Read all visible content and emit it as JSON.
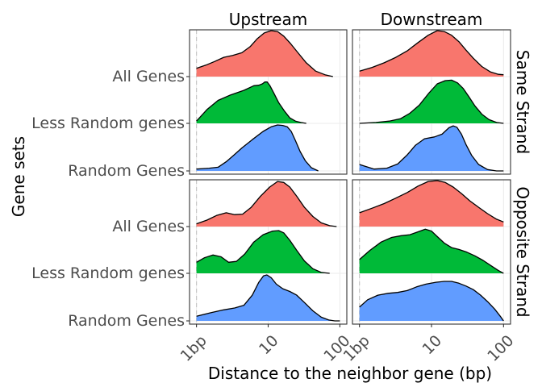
{
  "chart_data": {
    "type": "ridgeline",
    "xlabel": "Distance to the neighbor gene (bp)",
    "ylabel": "Gene sets",
    "x_scale": "log10",
    "x_ticks": [
      {
        "value": 1,
        "label": "1bp"
      },
      {
        "value": 10,
        "label": "10"
      },
      {
        "value": 100,
        "label": "100"
      }
    ],
    "x_range": [
      0.8,
      125
    ],
    "reference_line_x": 1,
    "grid": "major gridlines only",
    "legend": "none",
    "column_facets": [
      "Upstream",
      "Downstream"
    ],
    "row_facets": [
      "Same Strand",
      "Opposite Strand"
    ],
    "categories": [
      "All Genes",
      "Less Random genes",
      "Random Genes"
    ],
    "colors": {
      "All Genes": "#F8766D",
      "Less Random genes": "#00BA38",
      "Random Genes": "#619CFF"
    },
    "panels": [
      {
        "row": "Same Strand",
        "col": "Upstream",
        "series": [
          {
            "name": "All Genes",
            "x": [
              1.0,
              1.35,
              1.8,
              2.4,
              3.2,
              4.3,
              5.6,
              7.0,
              8.8,
              11.0,
              13.5,
              16.5,
              20.5,
              26.0,
              34.0,
              46.0,
              62.0,
              80.0
            ],
            "y": [
              0.18,
              0.25,
              0.33,
              0.42,
              0.46,
              0.52,
              0.65,
              0.82,
              0.95,
              1.0,
              0.98,
              0.88,
              0.72,
              0.52,
              0.3,
              0.12,
              0.04,
              0.0
            ]
          },
          {
            "name": "Less Random genes",
            "x": [
              1.0,
              1.4,
              2.0,
              3.0,
              4.6,
              6.3,
              7.4,
              8.3,
              9.0,
              9.7,
              10.6,
              12.0,
              14.0,
              17.0,
              20.0,
              24.0,
              28.5,
              34.0
            ],
            "y": [
              0.05,
              0.3,
              0.5,
              0.62,
              0.72,
              0.82,
              0.83,
              0.86,
              0.9,
              0.9,
              0.82,
              0.66,
              0.45,
              0.26,
              0.12,
              0.05,
              0.02,
              0.0
            ]
          },
          {
            "name": "Random Genes",
            "x": [
              1.0,
              1.5,
              2.0,
              2.6,
              3.3,
              4.3,
              6.0,
              8.5,
              11.0,
              13.5,
              16.0,
              18.5,
              21.0,
              24.0,
              28.0,
              33.0,
              40.0,
              50.0
            ],
            "y": [
              0.04,
              0.06,
              0.08,
              0.2,
              0.34,
              0.5,
              0.68,
              0.86,
              0.96,
              1.0,
              0.99,
              0.96,
              0.86,
              0.66,
              0.42,
              0.22,
              0.07,
              0.0
            ]
          }
        ]
      },
      {
        "row": "Same Strand",
        "col": "Downstream",
        "series": [
          {
            "name": "All Genes",
            "x": [
              1.0,
              1.5,
              2.2,
              3.2,
              4.6,
              6.5,
              9.0,
              12.0,
              15.0,
              19.0,
              24.0,
              30.0,
              38.0,
              50.0,
              66.0,
              85.0,
              100.0
            ],
            "y": [
              0.12,
              0.2,
              0.3,
              0.42,
              0.56,
              0.74,
              0.9,
              1.0,
              0.98,
              0.9,
              0.76,
              0.58,
              0.4,
              0.22,
              0.1,
              0.05,
              0.04
            ]
          },
          {
            "name": "Less Random genes",
            "x": [
              1.0,
              1.7,
              2.6,
              3.7,
              5.0,
              6.8,
              9.2,
              12.0,
              15.5,
              19.0,
              23.0,
              27.5,
              33.0,
              40.0,
              50.0,
              63.0,
              80.0,
              100.0
            ],
            "y": [
              0.0,
              0.02,
              0.05,
              0.1,
              0.22,
              0.4,
              0.66,
              0.86,
              0.93,
              0.94,
              0.88,
              0.76,
              0.58,
              0.38,
              0.2,
              0.08,
              0.02,
              0.0
            ]
          },
          {
            "name": "Random Genes",
            "x": [
              1.0,
              1.2,
              1.6,
              2.4,
              3.4,
              4.6,
              6.0,
              8.0,
              11.0,
              14.0,
              17.5,
              20.0,
              22.5,
              26.0,
              30.0,
              36.0,
              45.0,
              60.0,
              80.0,
              100.0
            ],
            "y": [
              0.14,
              0.1,
              0.04,
              0.06,
              0.15,
              0.35,
              0.56,
              0.7,
              0.74,
              0.8,
              0.94,
              0.98,
              0.95,
              0.8,
              0.58,
              0.34,
              0.14,
              0.03,
              0.0,
              0.0
            ]
          }
        ]
      },
      {
        "row": "Opposite Strand",
        "col": "Upstream",
        "series": [
          {
            "name": "All Genes",
            "x": [
              1.0,
              1.4,
              1.9,
              2.6,
              3.4,
              4.4,
              5.8,
              7.8,
              10.5,
              13.5,
              16.5,
              20.0,
              25.0,
              32.0,
              42.0,
              55.0,
              72.0,
              90.0
            ],
            "y": [
              0.06,
              0.14,
              0.24,
              0.3,
              0.26,
              0.27,
              0.42,
              0.66,
              0.86,
              0.98,
              0.96,
              0.86,
              0.66,
              0.42,
              0.22,
              0.08,
              0.02,
              0.0
            ]
          },
          {
            "name": "Less Random genes",
            "x": [
              1.0,
              1.3,
              1.7,
              2.2,
              2.8,
              3.6,
              4.7,
              6.3,
              8.5,
              11.5,
              14.0,
              16.5,
              20.0,
              25.0,
              32.0,
              42.0,
              55.0,
              72.0
            ],
            "y": [
              0.24,
              0.34,
              0.4,
              0.36,
              0.24,
              0.26,
              0.42,
              0.68,
              0.84,
              0.92,
              0.93,
              0.88,
              0.72,
              0.5,
              0.27,
              0.1,
              0.02,
              0.0
            ]
          },
          {
            "name": "Random Genes",
            "x": [
              1.0,
              1.6,
              2.4,
              3.4,
              4.6,
              6.0,
              7.4,
              8.6,
              9.6,
              11.0,
              13.0,
              16.0,
              20.0,
              25.0,
              32.0,
              42.0,
              55.0,
              70.0,
              85.0,
              100.0
            ],
            "y": [
              0.1,
              0.18,
              0.24,
              0.28,
              0.34,
              0.56,
              0.84,
              0.98,
              1.0,
              0.94,
              0.8,
              0.7,
              0.64,
              0.56,
              0.4,
              0.22,
              0.08,
              0.02,
              0.0,
              0.0
            ]
          }
        ]
      },
      {
        "row": "Opposite Strand",
        "col": "Downstream",
        "series": [
          {
            "name": "All Genes",
            "x": [
              1.0,
              1.5,
              2.2,
              3.2,
              4.6,
              6.5,
              9.0,
              12.0,
              15.5,
              20.0,
              26.0,
              34.0,
              45.0,
              60.0,
              80.0,
              100.0
            ],
            "y": [
              0.3,
              0.4,
              0.5,
              0.62,
              0.74,
              0.88,
              0.98,
              1.0,
              0.96,
              0.86,
              0.72,
              0.56,
              0.42,
              0.28,
              0.16,
              0.1
            ]
          },
          {
            "name": "Less Random genes",
            "x": [
              1.0,
              1.4,
              2.0,
              2.8,
              3.8,
              5.0,
              6.4,
              8.2,
              10.0,
              12.0,
              15.0,
              19.0,
              24.0,
              31.0,
              40.0,
              52.0,
              68.0,
              85.0,
              100.0
            ],
            "y": [
              0.3,
              0.5,
              0.68,
              0.78,
              0.82,
              0.84,
              0.9,
              0.96,
              0.92,
              0.8,
              0.66,
              0.56,
              0.52,
              0.46,
              0.38,
              0.28,
              0.16,
              0.06,
              0.0
            ]
          },
          {
            "name": "Random Genes",
            "x": [
              1.0,
              1.3,
              1.8,
              2.5,
              3.4,
              4.6,
              6.2,
              8.4,
              11.5,
              15.0,
              19.0,
              24.0,
              30.0,
              38.0,
              48.0,
              60.0,
              75.0,
              90.0,
              100.0
            ],
            "y": [
              0.3,
              0.46,
              0.56,
              0.6,
              0.62,
              0.66,
              0.74,
              0.8,
              0.84,
              0.86,
              0.86,
              0.82,
              0.76,
              0.68,
              0.56,
              0.42,
              0.26,
              0.1,
              0.0
            ]
          }
        ]
      }
    ]
  }
}
